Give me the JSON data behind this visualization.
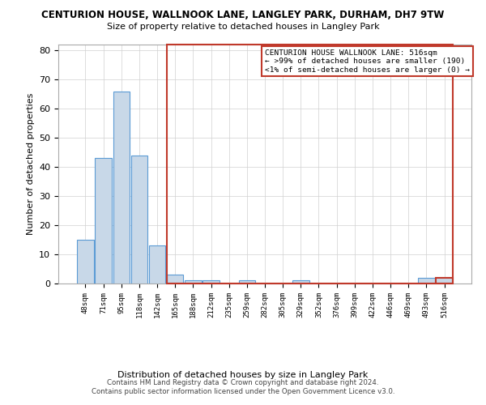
{
  "title": "CENTURION HOUSE, WALLNOOK LANE, LANGLEY PARK, DURHAM, DH7 9TW",
  "subtitle": "Size of property relative to detached houses in Langley Park",
  "xlabel": "Distribution of detached houses by size in Langley Park",
  "ylabel": "Number of detached properties",
  "footer1": "Contains HM Land Registry data © Crown copyright and database right 2024.",
  "footer2": "Contains public sector information licensed under the Open Government Licence v3.0.",
  "categories": [
    "48sqm",
    "71sqm",
    "95sqm",
    "118sqm",
    "142sqm",
    "165sqm",
    "188sqm",
    "212sqm",
    "235sqm",
    "259sqm",
    "282sqm",
    "305sqm",
    "329sqm",
    "352sqm",
    "376sqm",
    "399sqm",
    "422sqm",
    "446sqm",
    "469sqm",
    "493sqm",
    "516sqm"
  ],
  "values": [
    15,
    43,
    66,
    44,
    13,
    3,
    1,
    1,
    0,
    1,
    0,
    0,
    1,
    0,
    0,
    0,
    0,
    0,
    0,
    2,
    2
  ],
  "bar_color": "#c8d8e8",
  "bar_edge_color": "#5b9bd5",
  "highlight_bar_index": 20,
  "highlight_bar_edge_color": "#c0392b",
  "ylim": [
    0,
    82
  ],
  "yticks": [
    0,
    10,
    20,
    30,
    40,
    50,
    60,
    70,
    80
  ],
  "legend_text1": "CENTURION HOUSE WALLNOOK LANE: 516sqm",
  "legend_text2": "← >99% of detached houses are smaller (190)",
  "legend_text3": "<1% of semi-detached houses are larger (0) →",
  "legend_box_color": "#c0392b",
  "bg_color": "#ffffff",
  "grid_color": "#d0d0d0"
}
